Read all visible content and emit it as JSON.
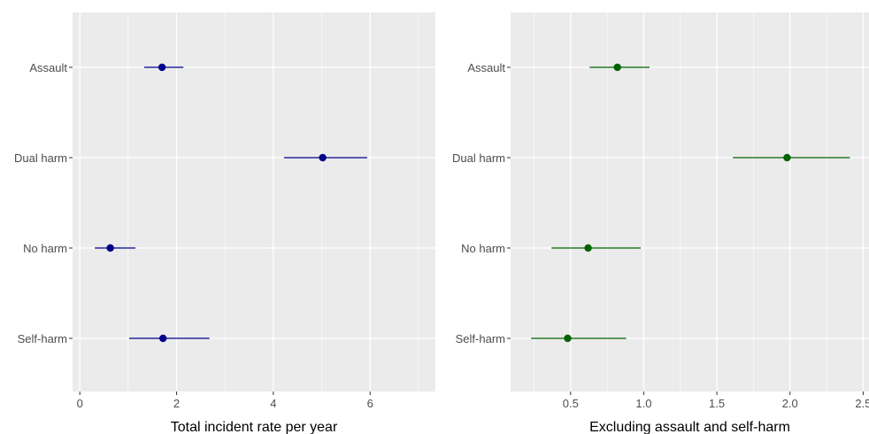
{
  "chart_data": [
    {
      "type": "forest",
      "xlabel": "Total incident rate per year",
      "ylabel": "",
      "xlim": [
        -0.15,
        7.35
      ],
      "xticks": [
        0,
        2,
        4,
        6
      ],
      "tick_labels": [
        "0",
        "2",
        "4",
        "6"
      ],
      "categories": [
        "Assault",
        "Dual harm",
        "No harm",
        "Self-harm"
      ],
      "estimate": [
        1.7,
        5.02,
        0.63,
        1.72
      ],
      "lower": [
        1.33,
        4.22,
        0.31,
        1.02
      ],
      "upper": [
        2.14,
        5.94,
        1.15,
        2.68
      ],
      "color": "#00008B",
      "grid": true
    },
    {
      "type": "forest",
      "xlabel": "Excluding assault and self-harm",
      "ylabel": "",
      "xlim": [
        0.09,
        2.54
      ],
      "xticks": [
        0.5,
        1.0,
        1.5,
        2.0,
        2.5
      ],
      "tick_labels": [
        "0.5",
        "1.0",
        "1.5",
        "2.0",
        "2.5"
      ],
      "categories": [
        "Assault",
        "Dual harm",
        "No harm",
        "Self-harm"
      ],
      "estimate": [
        0.82,
        1.98,
        0.62,
        0.48
      ],
      "lower": [
        0.63,
        1.61,
        0.37,
        0.23
      ],
      "upper": [
        1.04,
        2.41,
        0.98,
        0.88
      ],
      "color": "#006400",
      "grid": true
    }
  ]
}
